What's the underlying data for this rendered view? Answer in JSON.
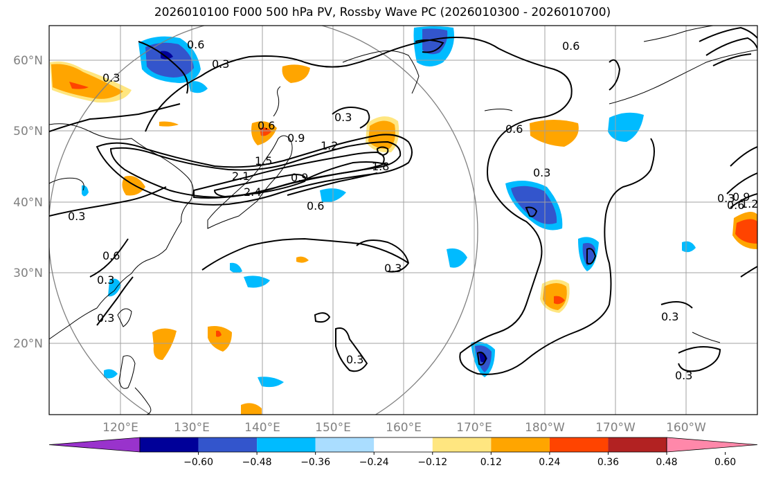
{
  "title": "2026010100 F000 500 hPa PV, Rossby Wave PC (2026010300 - 2026010700)",
  "lat_labels": [
    "60°N",
    "50°N",
    "40°N",
    "30°N",
    "20°N"
  ],
  "lon_labels": [
    "120°E",
    "130°E",
    "140°E",
    "150°E",
    "160°E",
    "170°E",
    "180°W",
    "170°W",
    "160°W"
  ],
  "contour_labels": [
    "0.6",
    "0.3",
    "0.3",
    "0.6",
    "0.3",
    "0.6",
    "0.9",
    "1.2",
    "1.5",
    "1.8",
    "2.1",
    "2.4",
    "0.9",
    "0.6",
    "0.3",
    "0.6",
    "0.3",
    "0.3",
    "0.3",
    "0.3",
    "0.6",
    "0.3",
    "0.3",
    "0.3",
    "0.3",
    "0.6",
    "0.9",
    "1.2"
  ],
  "colorbar": {
    "ticks": [
      "−0.60",
      "−0.48",
      "−0.36",
      "−0.24",
      "−0.12",
      "0.12",
      "0.24",
      "0.36",
      "0.48",
      "0.60"
    ],
    "colors": [
      "#9933cc",
      "#000099",
      "#3355cc",
      "#00bbff",
      "#aaddff",
      "#ffffff",
      "#ffe680",
      "#ffa500",
      "#ff4400",
      "#b22222",
      "#ff88aa"
    ]
  },
  "legend": {
    "unit": ""
  }
}
